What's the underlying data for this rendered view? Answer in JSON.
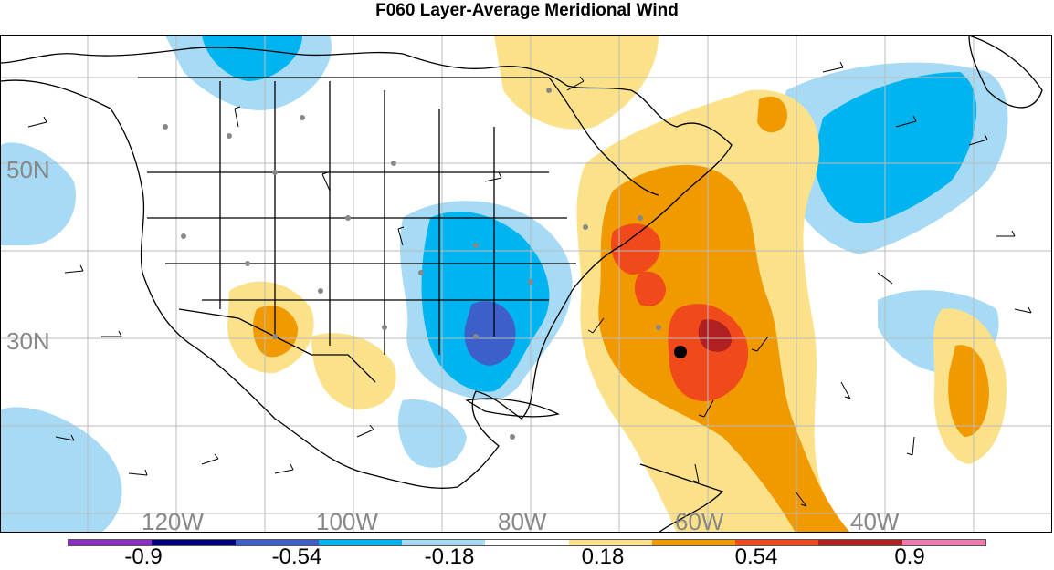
{
  "title": "F060 Layer-Average Meridional Wind",
  "lat_labels": [
    "50N",
    "30N"
  ],
  "lon_labels": [
    "120W",
    "100W",
    "80W",
    "60W",
    "40W"
  ],
  "colorbar": {
    "colors": [
      "#8c2fc4",
      "#00007c",
      "#3d5fc9",
      "#00b4f0",
      "#a6daf5",
      "#ffffff",
      "#fbe28a",
      "#f19a00",
      "#f04a1c",
      "#b02020",
      "#ee7ab0"
    ],
    "labels": [
      "-0.9",
      "-0.54",
      "-0.18",
      "0.18",
      "0.54",
      "0.9"
    ]
  },
  "palette": {
    "light_blue": "#a6daf5",
    "blue": "#00b4f0",
    "dark_blue": "#3d5fc9",
    "yellow": "#fbe28a",
    "orange": "#f19a00",
    "red": "#f04a1c",
    "dark_red": "#b02020",
    "station_dot": "#888888"
  }
}
